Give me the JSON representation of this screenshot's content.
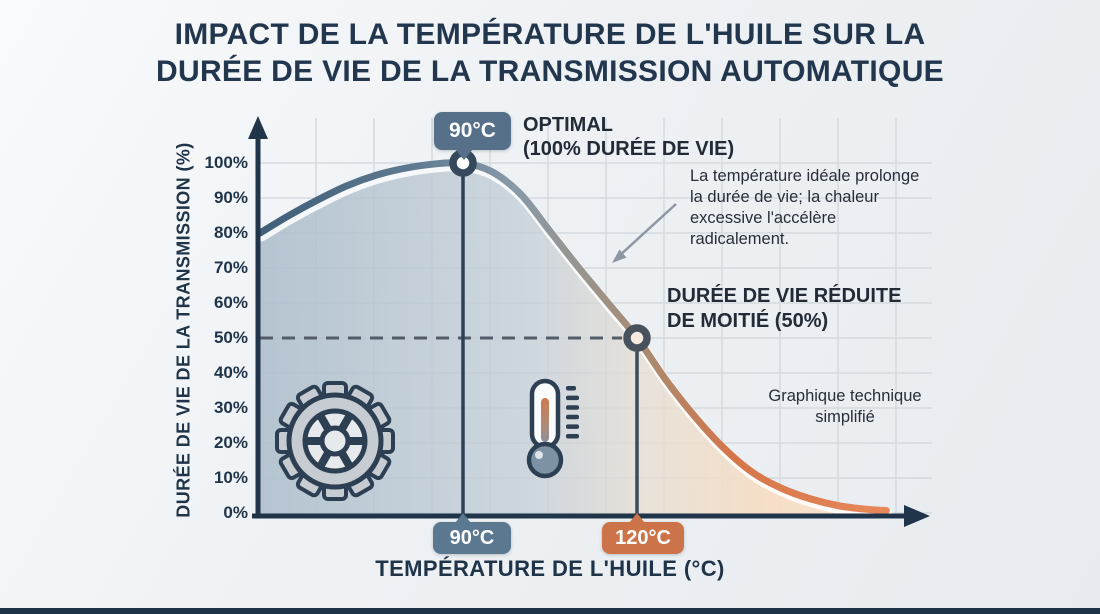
{
  "title": {
    "line1": "IMPACT DE LA TEMPÉRATURE DE L'HUILE SUR LA",
    "line2": "DURÉE DE VIE DE LA TRANSMISSION AUTOMATIQUE"
  },
  "axes": {
    "y_label": "DURÉE DE VIE DE LA TRANSMISSION (%)",
    "x_label": "TEMPÉRATURE DE L'HUILE (°C)"
  },
  "badges": {
    "optimal_top": "90°C",
    "x_90": "90°C",
    "x_120": "120°C"
  },
  "annotations": {
    "optimal_title": "OPTIMAL",
    "optimal_sub": "(100% DURÉE DE VIE)",
    "note": "La température idéale prolonge la durée de vie; la chaleur excessive l'accélère radicalement.",
    "reduced_line1": "DURÉE DE VIE RÉDUITE",
    "reduced_line2": "DE MOITIÉ (50%)",
    "footnote_line1": "Graphique technique",
    "footnote_line2": "simplifié"
  },
  "icons": {
    "gear": "gear-icon",
    "thermometer": "thermometer-icon"
  },
  "colors": {
    "title_navy": "#22374e",
    "axis_navy": "#20344a",
    "badge_slate": "#567089",
    "badge_orange": "#cd7349",
    "curve_blue": "#3f5d77",
    "curve_orange": "#dd7a4c",
    "fill_blue": "#b8c6d2",
    "fill_peach": "#f5dcc6",
    "grid_gray": "#d4dae0",
    "dashed_gray": "#525d69",
    "arrow_gray": "#8d96a3"
  },
  "chart_data": {
    "type": "area",
    "title": "Impact de la température de l'huile sur la durée de vie de la transmission automatique",
    "xlabel": "Température de l'huile (°C)",
    "ylabel": "Durée de vie de la transmission (%)",
    "x_tick_labels": [
      "90°C",
      "120°C"
    ],
    "y_tick_labels": [
      "100%",
      "90%",
      "80%",
      "70%",
      "60%",
      "50%",
      "40%",
      "30%",
      "20%",
      "10%",
      "0%"
    ],
    "x_range_degC": [
      55,
      163
    ],
    "ylim": [
      0,
      100
    ],
    "grid": true,
    "series": [
      {
        "name": "Durée de vie de la transmission (%)",
        "points_degC_pct": [
          [
            55,
            80
          ],
          [
            60,
            85
          ],
          [
            65,
            89.5
          ],
          [
            70,
            93.5
          ],
          [
            75,
            96.5
          ],
          [
            80,
            98.5
          ],
          [
            85,
            99.7
          ],
          [
            90,
            100
          ],
          [
            95,
            97.5
          ],
          [
            100,
            91
          ],
          [
            105,
            80.5
          ],
          [
            110,
            70
          ],
          [
            115,
            60
          ],
          [
            120,
            50
          ],
          [
            125,
            38
          ],
          [
            130,
            27.5
          ],
          [
            135,
            18.5
          ],
          [
            140,
            11.5
          ],
          [
            145,
            7
          ],
          [
            150,
            4
          ],
          [
            155,
            2
          ],
          [
            160,
            1
          ],
          [
            163,
            0.7
          ]
        ]
      }
    ],
    "key_points": [
      {
        "temp_c": 90,
        "life_pct": 100,
        "label": "Optimal (100% durée de vie)"
      },
      {
        "temp_c": 120,
        "life_pct": 50,
        "label": "Durée de vie réduite de moitié (50%)"
      }
    ],
    "reference_line": {
      "y_pct": 50,
      "style": "dashed"
    }
  }
}
